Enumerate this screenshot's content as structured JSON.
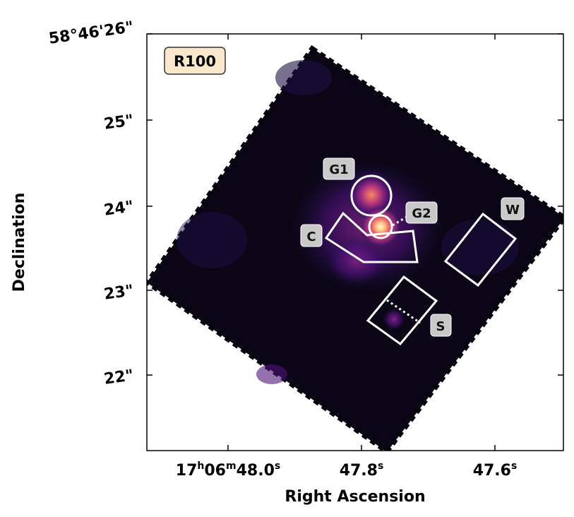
{
  "badge": {
    "text": "R100",
    "fill": "#fbe8cc"
  },
  "axes": {
    "xlabel": "Right Ascension",
    "ylabel": "Declination",
    "ra_ticks": [
      {
        "h": "17",
        "m": "06",
        "s": "48.0",
        "suffix": "s"
      },
      {
        "value": "47.8",
        "suffix": "s"
      },
      {
        "value": "47.6",
        "suffix": "s"
      }
    ],
    "dec_ticks": [
      "58°46'26\"",
      "25\"",
      "24\"",
      "23\"",
      "22\""
    ]
  },
  "regions": [
    {
      "label": "G1",
      "shape": "circle"
    },
    {
      "label": "G2",
      "shape": "circle"
    },
    {
      "label": "C",
      "shape": "polygon"
    },
    {
      "label": "W",
      "shape": "rectangle"
    },
    {
      "label": "S",
      "shape": "rectangle"
    }
  ],
  "colormap": [
    "#000004",
    "#1c1044",
    "#4f127b",
    "#812581",
    "#b5367a",
    "#e55064",
    "#fb8761",
    "#fec287",
    "#fcfdbf"
  ],
  "colors": {
    "region_stroke": "#ffffff",
    "label_box": "#c9c9c9"
  }
}
